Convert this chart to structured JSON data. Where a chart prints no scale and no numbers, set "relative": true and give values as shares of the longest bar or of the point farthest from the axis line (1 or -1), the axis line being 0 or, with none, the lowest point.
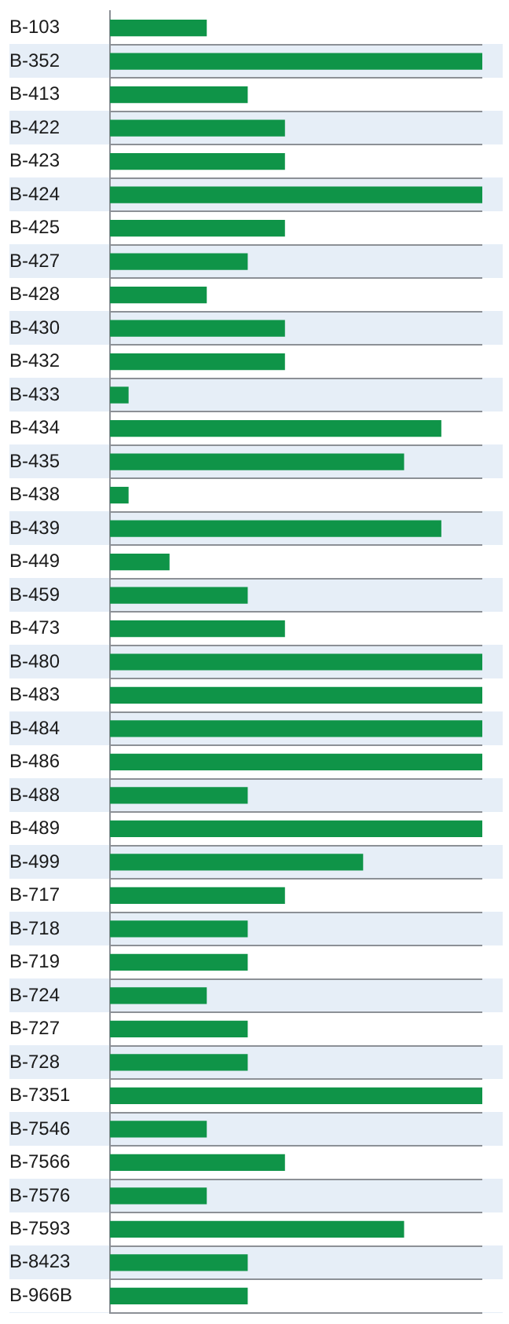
{
  "chart_data": {
    "type": "bar",
    "orientation": "horizontal",
    "relative": true,
    "grid": "y",
    "legend": false,
    "tick_labels": "y",
    "categories": [
      "B-103",
      "B-352",
      "B-413",
      "B-422",
      "B-423",
      "B-424",
      "B-425",
      "B-427",
      "B-428",
      "B-430",
      "B-432",
      "B-433",
      "B-434",
      "B-435",
      "B-438",
      "B-439",
      "B-449",
      "B-459",
      "B-473",
      "B-480",
      "B-483",
      "B-484",
      "B-486",
      "B-488",
      "B-489",
      "B-499",
      "B-717",
      "B-718",
      "B-719",
      "B-724",
      "B-727",
      "B-728",
      "B-7351",
      "B-7546",
      "B-7566",
      "B-7576",
      "B-7593",
      "B-8423",
      "B-966B"
    ],
    "values": [
      0.26,
      1,
      0.37,
      0.47,
      0.47,
      1,
      0.47,
      0.37,
      0.26,
      0.47,
      0.47,
      0.05,
      0.89,
      0.79,
      0.05,
      0.89,
      0.16,
      0.37,
      0.47,
      1,
      1,
      1,
      1,
      0.37,
      1,
      0.68,
      0.47,
      0.37,
      0.37,
      0.26,
      0.37,
      0.37,
      1,
      0.26,
      0.47,
      0.26,
      0.79,
      0.37,
      0.37
    ],
    "color": "#0f9448"
  }
}
